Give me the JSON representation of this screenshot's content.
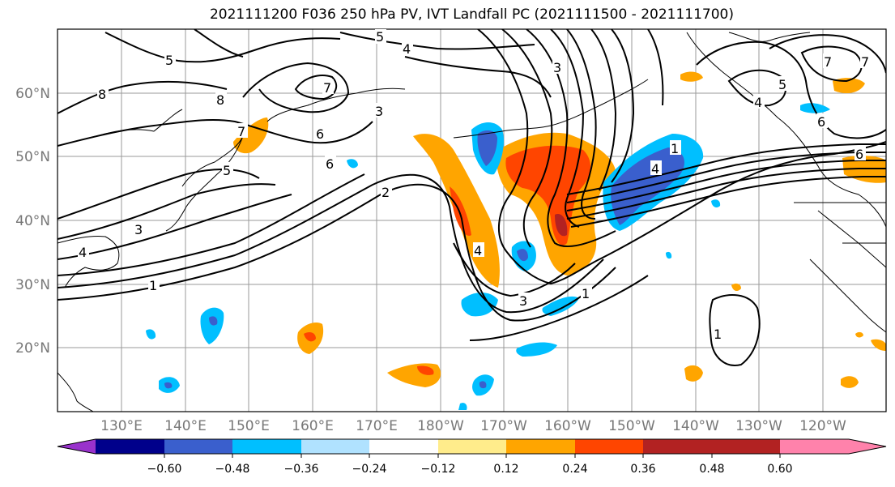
{
  "title": "2021111200 F036 250 hPa PV, IVT Landfall PC (2021111500 - 2021111700)",
  "lat_labels": [
    "60°N",
    "50°N",
    "40°N",
    "30°N",
    "20°N"
  ],
  "lon_labels": [
    "130°E",
    "140°E",
    "150°E",
    "160°E",
    "170°E",
    "180°W",
    "170°W",
    "160°W",
    "150°W",
    "140°W",
    "130°W",
    "120°W"
  ],
  "colorbar": {
    "colors": [
      "#9932CC",
      "#00008B",
      "#3A5FCD",
      "#00BFFF",
      "#B0E2FF",
      "#FFFFFF",
      "#FFEC8B",
      "#FFA500",
      "#FF4500",
      "#B22222",
      "#FF82AB"
    ],
    "tick_labels": [
      "−0.60",
      "−0.48",
      "−0.36",
      "−0.24",
      "−0.12",
      "0.12",
      "0.24",
      "0.36",
      "0.48",
      "0.60"
    ]
  },
  "contour_labels": [
    "5",
    "4",
    "7",
    "5",
    "8",
    "3",
    "2",
    "1",
    "6",
    "6",
    "7",
    "5",
    "4",
    "3",
    "1",
    "4",
    "3",
    "2",
    "1",
    "8",
    "7",
    "1",
    "5",
    "4",
    "6",
    "7",
    "6",
    "1",
    "4",
    "3"
  ]
}
